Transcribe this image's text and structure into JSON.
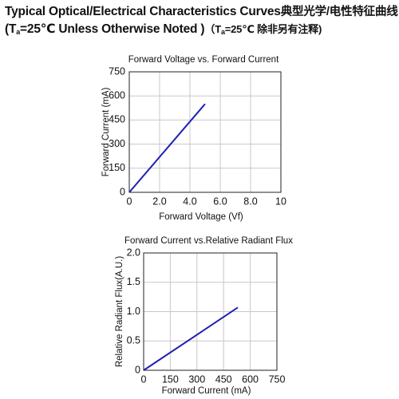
{
  "header": {
    "line1_en": "Typical Optical/Electrical Characteristics Curves",
    "line1_cn": "典型光学/电性特征曲线",
    "line2_open": "(T",
    "line2_sub": "a",
    "line2_rest": "=25℃ Unless Otherwise Noted )",
    "line2_cn_open": "（T",
    "line2_cn_sub": "a",
    "line2_cn_rest": "=25℃ 除非另有注释)"
  },
  "chart_data": [
    {
      "type": "line",
      "title": "Forward Voltage vs. Forward Current",
      "xlabel": "Forward Voltage (Vf)",
      "ylabel": "Forward Current (mA)",
      "xlim": [
        0,
        10
      ],
      "ylim": [
        0,
        750
      ],
      "xticks": [
        "0",
        "2.0",
        "4.0",
        "6.0",
        "8.0",
        "10"
      ],
      "yticks": [
        "0",
        "150",
        "300",
        "450",
        "600",
        "750"
      ],
      "xtick_values": [
        0,
        2,
        4,
        6,
        8,
        10
      ],
      "ytick_values": [
        0,
        150,
        300,
        450,
        600,
        750
      ],
      "grid": true,
      "color": "#1f1fb4",
      "series": [
        {
          "x": [
            0.0,
            5.0
          ],
          "y": [
            0,
            550
          ]
        }
      ]
    },
    {
      "type": "line",
      "title": "Forward Current vs.Relative Radiant Flux",
      "xlabel": "Forward Current (mA)",
      "ylabel": "Relative Radiant Flux(A.U.)",
      "xlim": [
        0,
        750
      ],
      "ylim": [
        0,
        2.0
      ],
      "xticks": [
        "0",
        "150",
        "300",
        "450",
        "600",
        "750"
      ],
      "yticks": [
        "0",
        "0.5",
        "1.0",
        "1.5",
        "2.0"
      ],
      "xtick_values": [
        0,
        150,
        300,
        450,
        600,
        750
      ],
      "ytick_values": [
        0,
        0.5,
        1.0,
        1.5,
        2.0
      ],
      "grid": true,
      "color": "#1f1fb4",
      "series": [
        {
          "x": [
            0,
            530
          ],
          "y": [
            0,
            1.07
          ]
        }
      ]
    }
  ]
}
